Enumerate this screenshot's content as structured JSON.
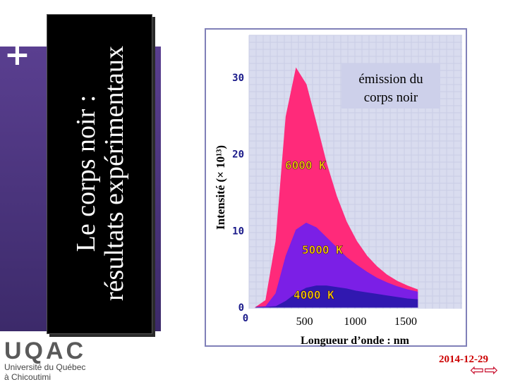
{
  "slide": {
    "title_line1": "Le corps noir :",
    "title_line2": "résultats expérimentaux",
    "logo_main": "UQAC",
    "logo_line1": "Université du Québec",
    "logo_line2": "à Chicoutimi",
    "date": "2014-12-29",
    "nav_arrows": "⇦⇨"
  },
  "chart_data": {
    "type": "area",
    "title": "émission du corps noir",
    "title_line1": "émission du",
    "title_line2": "corps noir",
    "xlabel": "Longueur d’onde : nm",
    "ylabel": "Intensité (× 10¹³)",
    "xlim": [
      0,
      1700
    ],
    "ylim": [
      0,
      33
    ],
    "x_ticks": [
      0,
      500,
      1000,
      1500
    ],
    "y_ticks": [
      0,
      10,
      20,
      30
    ],
    "colors": {
      "6000K": "#ff2a7a",
      "5000K": "#7b1fe6",
      "4000K": "#3018b0",
      "background": "#d9dcef",
      "tick_text": "#1a1a8a",
      "curve_label": "#ffd400"
    },
    "series": [
      {
        "name": "6000 K",
        "x": [
          100,
          200,
          300,
          400,
          500,
          600,
          700,
          800,
          900,
          1000,
          1100,
          1200,
          1300,
          1400,
          1500,
          1600,
          1700
        ],
        "values": [
          0.0,
          0.9,
          8.6,
          24.9,
          31.2,
          29.1,
          24.0,
          18.8,
          14.5,
          11.1,
          8.6,
          6.7,
          5.3,
          4.2,
          3.4,
          2.8,
          2.3
        ]
      },
      {
        "name": "5000 K",
        "x": [
          100,
          200,
          300,
          400,
          500,
          600,
          700,
          800,
          900,
          1000,
          1100,
          1200,
          1300,
          1400,
          1500,
          1600,
          1700
        ],
        "values": [
          0.0,
          0.1,
          1.8,
          6.7,
          10.1,
          11.0,
          10.4,
          9.1,
          7.8,
          6.5,
          5.5,
          4.6,
          3.8,
          3.2,
          2.7,
          2.3,
          2.0
        ]
      },
      {
        "name": "4000 K",
        "x": [
          100,
          200,
          300,
          400,
          500,
          600,
          700,
          800,
          900,
          1000,
          1100,
          1200,
          1300,
          1400,
          1500,
          1600,
          1700
        ],
        "values": [
          0.0,
          0.0,
          0.1,
          0.8,
          1.8,
          2.5,
          2.8,
          2.8,
          2.6,
          2.4,
          2.1,
          1.9,
          1.7,
          1.5,
          1.3,
          1.1,
          1.0
        ]
      }
    ]
  }
}
